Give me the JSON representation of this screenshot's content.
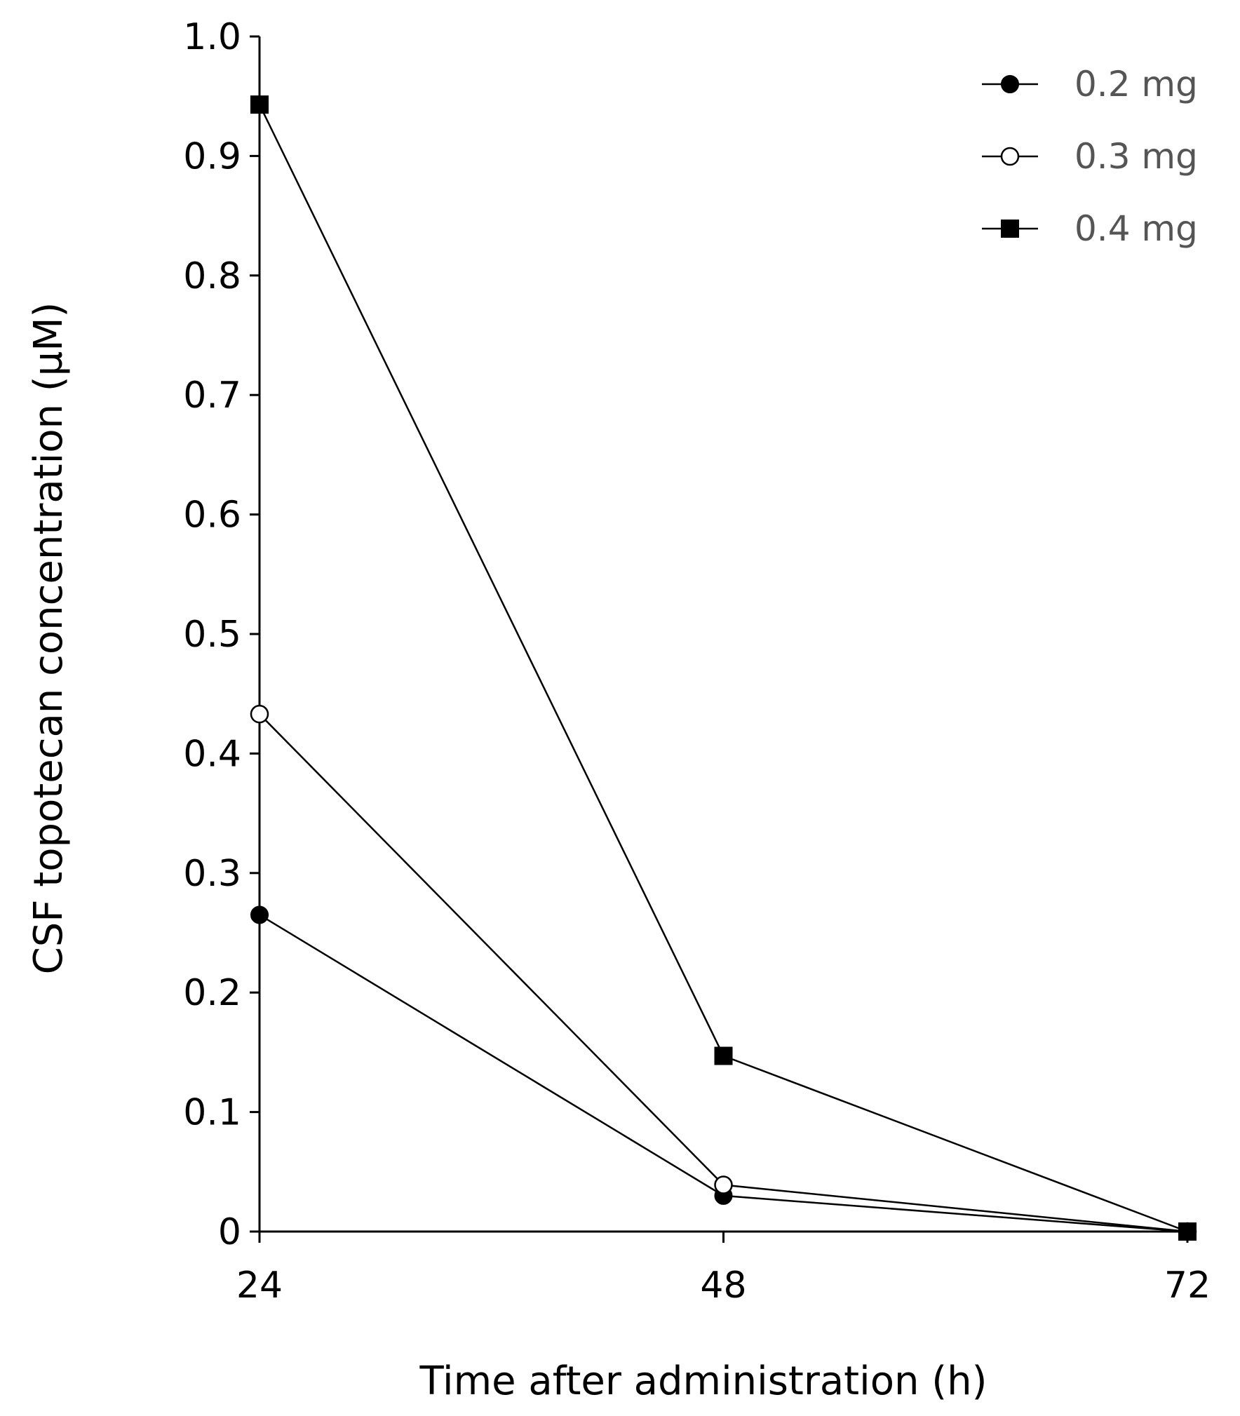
{
  "chart_data": {
    "type": "line",
    "title": "",
    "xlabel": "Time after administration (h)",
    "ylabel": "CSF topotecan concentration (µM)",
    "x": [
      24,
      48,
      72
    ],
    "xlim": [
      24,
      72
    ],
    "ylim": [
      0,
      1.0
    ],
    "x_ticks": [
      "24",
      "48",
      "72"
    ],
    "y_ticks": [
      "0",
      "0.1",
      "0.2",
      "0.3",
      "0.4",
      "0.5",
      "0.6",
      "0.7",
      "0.8",
      "0.9",
      "1.0"
    ],
    "y_tick_values": [
      0,
      0.1,
      0.2,
      0.3,
      0.4,
      0.5,
      0.6,
      0.7,
      0.8,
      0.9,
      1.0
    ],
    "grid": false,
    "legend_position": "top-right",
    "series": [
      {
        "name": "0.2 mg",
        "marker": "filled-circle",
        "values": [
          0.265,
          0.03,
          0.0
        ]
      },
      {
        "name": "0.3 mg",
        "marker": "open-circle",
        "values": [
          0.433,
          0.039,
          0.0
        ]
      },
      {
        "name": "0.4 mg",
        "marker": "filled-square",
        "values": [
          0.943,
          0.147,
          0.0
        ]
      }
    ],
    "colors": {
      "line": "#000000",
      "marker_fill": "#000000",
      "open_fill": "#ffffff",
      "legend_text": "#555555"
    }
  }
}
